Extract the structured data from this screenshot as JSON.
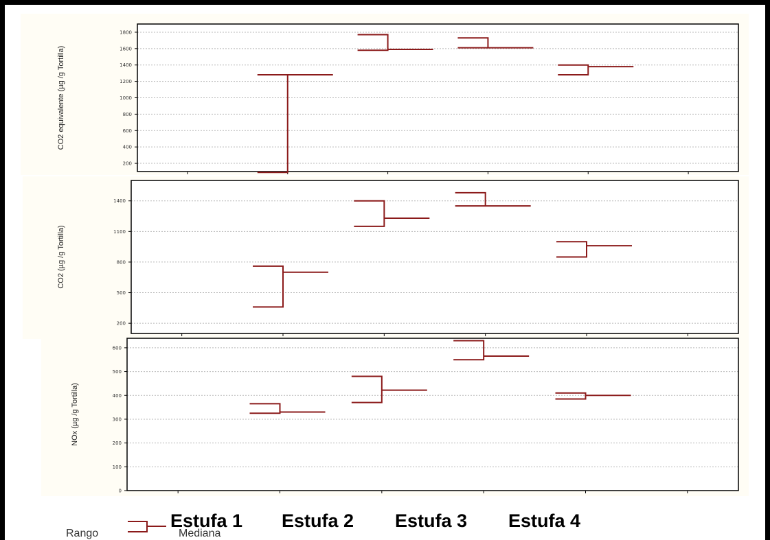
{
  "colors": {
    "range_line": "#8b1a1a",
    "grid": "#b8b8b8",
    "frame": "#000000",
    "panel_bg": "#fffdf5"
  },
  "category_labels": [
    "Estufa 1",
    "Estufa 2",
    "Estufa 3",
    "Estufa 4"
  ],
  "legend": {
    "range_label": "Rango",
    "median_label": "Mediana"
  },
  "chart_data": [
    {
      "type": "range-median",
      "ylabel": "CO2 equivalente (µg /g Tortilla)",
      "yticks": [
        200,
        400,
        600,
        800,
        1000,
        1200,
        1400,
        1600,
        1800
      ],
      "ytick_labels": [
        "200",
        "400",
        "600",
        "800",
        "1000",
        "1200",
        "1400",
        "1600",
        "1800"
      ],
      "ylim": [
        100,
        1900
      ],
      "x_categories": 6,
      "grid": true,
      "series": [
        {
          "category": "Estufa 1",
          "min": 90,
          "max": 1280,
          "median": 1280
        },
        {
          "category": "Estufa 2",
          "min": 1580,
          "max": 1770,
          "median": 1590
        },
        {
          "category": "Estufa 3",
          "min": 1610,
          "max": 1730,
          "median": 1610
        },
        {
          "category": "Estufa 4",
          "min": 1280,
          "max": 1400,
          "median": 1380
        }
      ]
    },
    {
      "type": "range-median",
      "ylabel": "CO2 (µg /g Tortilla)",
      "yticks": [
        200,
        500,
        800,
        1100,
        1400
      ],
      "ytick_labels": [
        "200",
        "500",
        "800",
        "1100",
        "1400"
      ],
      "ylim": [
        100,
        1600
      ],
      "x_categories": 6,
      "grid": true,
      "series": [
        {
          "category": "Estufa 1",
          "min": 360,
          "max": 760,
          "median": 700
        },
        {
          "category": "Estufa 2",
          "min": 1150,
          "max": 1400,
          "median": 1230
        },
        {
          "category": "Estufa 3",
          "min": 1350,
          "max": 1480,
          "median": 1350
        },
        {
          "category": "Estufa 4",
          "min": 850,
          "max": 1000,
          "median": 960
        }
      ]
    },
    {
      "type": "range-median",
      "ylabel": "NOx (µg /g Tortilla)",
      "yticks": [
        0,
        100,
        200,
        300,
        400,
        500,
        600
      ],
      "ytick_labels": [
        "0",
        "100",
        "200",
        "300",
        "400",
        "500",
        "600"
      ],
      "ylim": [
        0,
        640
      ],
      "x_categories": 6,
      "grid": true,
      "series": [
        {
          "category": "Estufa 1",
          "min": 325,
          "max": 365,
          "median": 330
        },
        {
          "category": "Estufa 2",
          "min": 370,
          "max": 480,
          "median": 422
        },
        {
          "category": "Estufa 3",
          "min": 550,
          "max": 630,
          "median": 565
        },
        {
          "category": "Estufa 4",
          "min": 385,
          "max": 410,
          "median": 400
        }
      ]
    }
  ]
}
